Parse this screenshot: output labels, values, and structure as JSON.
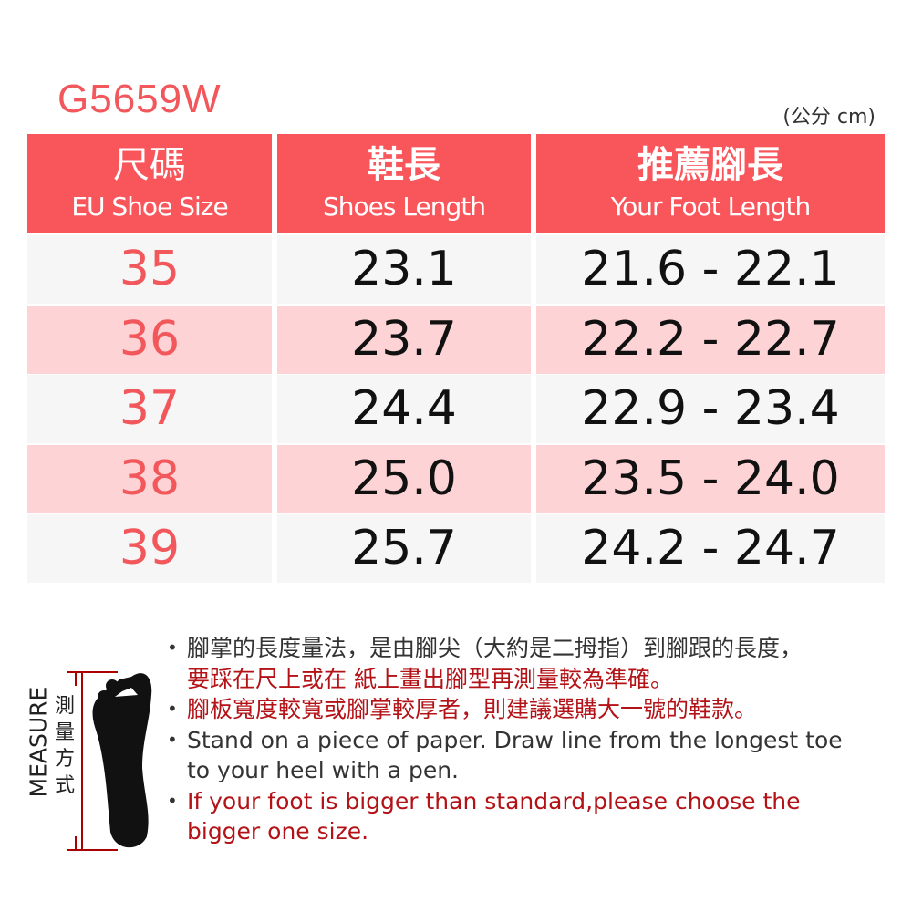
{
  "model": "G5659W",
  "unit": "(公分 cm)",
  "headers": [
    {
      "zh": "尺碼",
      "en": "EU Shoe Size"
    },
    {
      "zh": "鞋長",
      "en": "Shoes Length"
    },
    {
      "zh": "推薦腳長",
      "en": "Your Foot Length"
    }
  ],
  "rows": [
    {
      "size": "35",
      "shoe": "23.1",
      "foot": "21.6 - 22.1"
    },
    {
      "size": "36",
      "shoe": "23.7",
      "foot": "22.2 - 22.7"
    },
    {
      "size": "37",
      "shoe": "24.4",
      "foot": "22.9 - 23.4"
    },
    {
      "size": "38",
      "shoe": "25.0",
      "foot": "23.5 - 24.0"
    },
    {
      "size": "39",
      "shoe": "25.7",
      "foot": "24.2 - 24.7"
    }
  ],
  "measure": {
    "en": "MEASURE",
    "zh": "測量方式"
  },
  "notes": [
    {
      "lines": [
        "腳掌的長度量法，是由腳尖（大約是二拇指）到腳跟的長度，",
        "要踩在尺上或在 紙上畫出腳型再測量較為準確。"
      ],
      "colors": [
        "dark",
        "red"
      ]
    },
    {
      "lines": [
        "腳板寬度較寬或腳掌較厚者，則建議選購大一號的鞋款。"
      ],
      "colors": [
        "red"
      ]
    },
    {
      "lines": [
        "Stand on a piece of paper. Draw line from the longest toe",
        "to your heel with a pen."
      ],
      "colors": [
        "dark",
        "dark"
      ]
    },
    {
      "lines": [
        "If your foot is bigger than standard,please choose the",
        "bigger one size."
      ],
      "colors": [
        "red",
        "red"
      ]
    }
  ],
  "colors": {
    "header": "#f9565b",
    "row_pink": "#fdd3d5",
    "row_light": "#f6f6f6",
    "accent": "#f2575c",
    "note_red": "#b31217"
  }
}
